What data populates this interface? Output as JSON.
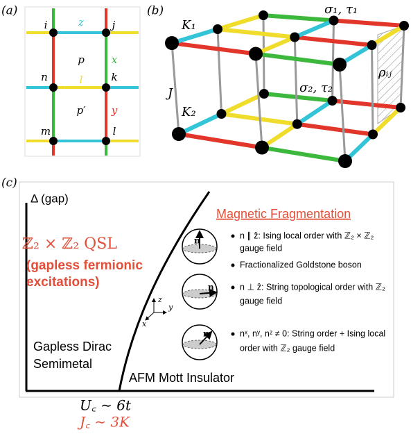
{
  "panel_a": {
    "label": "(a)",
    "sites": [
      "i",
      "j",
      "n",
      "k",
      "m",
      "l"
    ],
    "bonds": [
      "z",
      "x",
      "l",
      "y"
    ],
    "plaquettes": [
      "p",
      "p′"
    ]
  },
  "panel_b": {
    "label": "(b)",
    "k1": "K₁",
    "sigma1": "σ₁, τ₁",
    "j": "J",
    "k2": "K₂",
    "sigma2": "σ₂, τ₂",
    "rho": "ρᵢⱼ"
  },
  "panel_c": {
    "label": "(c)",
    "y_axis": "Δ (gap)",
    "qsl": "ℤ₂ × ℤ₂ QSL",
    "qsl_note": [
      "(gapless fermionic",
      "excitations)"
    ],
    "dirac": [
      "Gapless Dirac",
      "Semimetal"
    ],
    "afm": "AFM Mott Insulator",
    "fragmentation": "Magnetic Fragmentation",
    "bullets": [
      [
        "n ∥ ẑ: Ising local order with ℤ₂ × ℤ₂",
        "gauge field"
      ],
      [
        "Fractionalized Goldstone boson"
      ],
      [
        "n ⊥ ẑ: String topological order with ℤ₂",
        "gauge field"
      ],
      [
        "nˣ, nʸ, nᶻ ≠ 0: String order + Ising local",
        "order with ℤ₂ gauge field"
      ]
    ],
    "sphere_arrow": "n",
    "axes": [
      "z",
      "x",
      "y"
    ],
    "uc": "U꜀ ∼ 6t",
    "jc": "J꜀ ∼ 3K"
  }
}
